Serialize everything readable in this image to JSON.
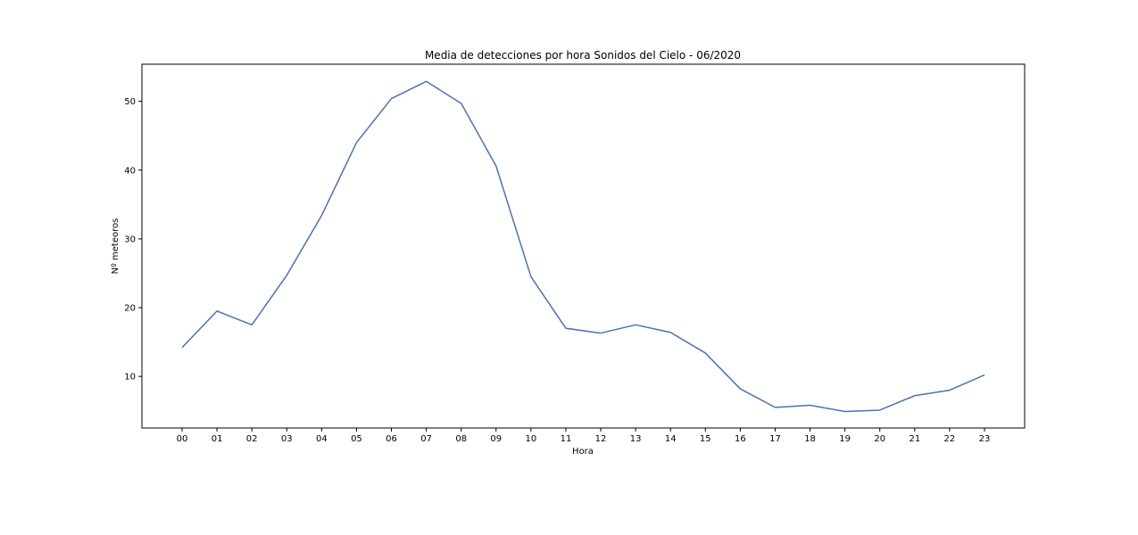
{
  "chart_data": {
    "type": "line",
    "title": "Media de detecciones por hora Sonidos del Cielo - 06/2020",
    "xlabel": "Hora",
    "ylabel": "Nº meteoros",
    "categories": [
      "00",
      "01",
      "02",
      "03",
      "04",
      "05",
      "06",
      "07",
      "08",
      "09",
      "10",
      "11",
      "12",
      "13",
      "14",
      "15",
      "16",
      "17",
      "18",
      "19",
      "20",
      "21",
      "22",
      "23"
    ],
    "series": [
      {
        "values": [
          14.2,
          19.5,
          17.5,
          24.7,
          33.4,
          44.0,
          50.4,
          52.9,
          49.7,
          40.6,
          24.5,
          17.0,
          16.3,
          17.5,
          16.4,
          13.4,
          8.2,
          5.5,
          5.8,
          4.9,
          5.1,
          7.2,
          8.0,
          10.2
        ],
        "color": "#4c72b0"
      }
    ],
    "yticks": [
      10,
      20,
      30,
      40,
      50
    ],
    "ylim": [
      2.5,
      55.4
    ],
    "grid": false,
    "legend": "none"
  }
}
